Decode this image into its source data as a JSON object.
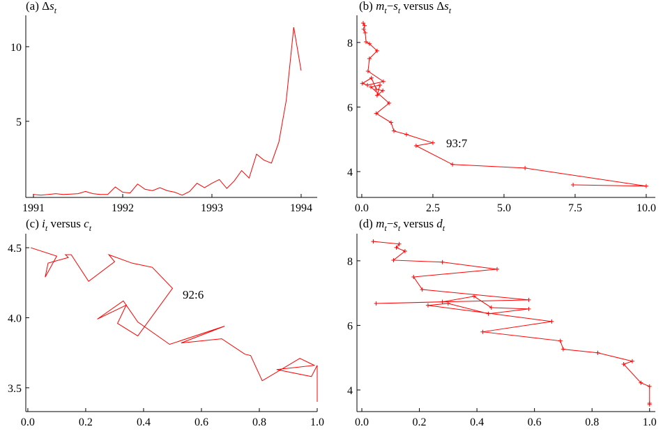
{
  "chart_data": [
    {
      "type": "line",
      "title": [
        "(a) Δ",
        "s",
        "t"
      ],
      "title_style": [
        "normal",
        "italic",
        "sub"
      ],
      "x": [
        1991,
        1991.083,
        1991.167,
        1991.25,
        1991.333,
        1991.417,
        1991.5,
        1991.583,
        1991.667,
        1991.75,
        1991.833,
        1991.917,
        1992,
        1992.083,
        1992.167,
        1992.25,
        1992.333,
        1992.417,
        1992.5,
        1992.583,
        1992.667,
        1992.75,
        1992.833,
        1992.917,
        1993,
        1993.083,
        1993.167,
        1993.25,
        1993.333,
        1993.417,
        1993.5,
        1993.583,
        1993.667,
        1993.75,
        1993.833,
        1993.917,
        1994
      ],
      "y": [
        0.1,
        0.05,
        0.1,
        0.15,
        0.1,
        0.12,
        0.15,
        0.3,
        0.15,
        0.1,
        0.1,
        0.6,
        0.25,
        0.2,
        0.8,
        0.45,
        0.35,
        0.55,
        0.35,
        0.25,
        0.05,
        0.3,
        0.85,
        0.55,
        0.85,
        1.1,
        0.5,
        1.0,
        1.7,
        1.2,
        2.8,
        2.4,
        2.2,
        3.6,
        6.4,
        11.3,
        8.4
      ],
      "color": "#ff0000",
      "markers": false,
      "xlim": [
        1990.914,
        1994.18
      ],
      "ylim": [
        -0.1,
        12.1
      ],
      "xticks": [
        1991,
        1992,
        1993,
        1994
      ],
      "yticks": [
        5,
        10
      ]
    },
    {
      "type": "line",
      "title": [
        "(b) ",
        "m",
        "t",
        "−",
        "s",
        "t",
        " versus Δ",
        "s",
        "t"
      ],
      "title_style": [
        "normal",
        "italic",
        "sub",
        "normal",
        "italic",
        "sub",
        "normal",
        "italic",
        "sub"
      ],
      "x": [
        0.05,
        0.1,
        0.07,
        0.12,
        0.15,
        0.27,
        0.54,
        0.27,
        0.22,
        0.76,
        0.2,
        0.02,
        0.34,
        0.51,
        0.74,
        0.54,
        0.64,
        0.32,
        0.96,
        0.51,
        1.03,
        1.13,
        1.57,
        2.5,
        1.91,
        3.19,
        5.74,
        10.0,
        7.43
      ],
      "y": [
        8.6,
        8.52,
        8.41,
        8.3,
        8.02,
        7.96,
        7.74,
        7.5,
        7.11,
        6.79,
        6.68,
        6.73,
        6.9,
        6.55,
        6.51,
        6.36,
        6.68,
        6.62,
        6.12,
        5.8,
        5.52,
        5.26,
        5.15,
        4.89,
        4.8,
        4.22,
        4.11,
        3.55,
        3.59
      ],
      "color": "#ff0000",
      "markers": true,
      "annotation": "93:7",
      "xlim": [
        -0.17,
        10.32
      ],
      "ylim": [
        3.2,
        8.84
      ],
      "xticks": [
        {
          "value": 0,
          "label": "0.0"
        },
        2.5,
        {
          "value": 5,
          "label": "5.0"
        },
        7.5,
        {
          "value": 10,
          "label": "10.0"
        }
      ],
      "yticks": [
        4,
        6,
        8
      ]
    },
    {
      "type": "line",
      "title": [
        "(c) ",
        "i",
        "t",
        " versus ",
        "c",
        "t"
      ],
      "title_style": [
        "normal",
        "italic",
        "sub",
        "normal",
        "italic",
        "sub"
      ],
      "x": [
        0.01,
        0.1,
        0.06,
        0.07,
        0.14,
        0.13,
        0.15,
        0.21,
        0.3,
        0.28,
        0.36,
        0.43,
        0.5,
        0.38,
        0.31,
        0.34,
        0.25,
        0.24,
        0.33,
        0.38,
        0.49,
        0.68,
        0.53,
        0.67,
        0.75,
        0.77,
        0.81,
        0.94,
        0.99,
        0.86,
        0.98,
        1.0,
        1.0
      ],
      "y": [
        4.5,
        4.44,
        4.29,
        4.39,
        4.43,
        4.45,
        4.45,
        4.26,
        4.4,
        4.45,
        4.39,
        4.36,
        4.21,
        3.87,
        3.96,
        4.09,
        4.0,
        3.99,
        4.12,
        3.97,
        3.81,
        3.94,
        3.82,
        3.85,
        3.74,
        3.73,
        3.55,
        3.71,
        3.66,
        3.63,
        3.58,
        3.66,
        3.4
      ],
      "color": "#ff0000",
      "markers": false,
      "annotation": "92:6",
      "xlim": [
        -0.007,
        1.0
      ],
      "ylim": [
        3.33,
        4.6
      ],
      "xticks": [
        {
          "value": 0,
          "label": "0.0"
        },
        0.2,
        0.4,
        0.6,
        0.8,
        {
          "value": 1,
          "label": "1.0"
        }
      ],
      "yticks": [
        3.5,
        {
          "value": 4,
          "label": "4.0"
        },
        4.5
      ]
    },
    {
      "type": "line",
      "title": [
        "(d) ",
        "m",
        "t",
        "−",
        "s",
        "t",
        " versus ",
        "d",
        "t"
      ],
      "title_style": [
        "normal",
        "italic",
        "sub",
        "normal",
        "italic",
        "sub",
        "normal",
        "italic",
        "sub"
      ],
      "x": [
        0.04,
        0.13,
        0.12,
        0.15,
        0.11,
        0.28,
        0.47,
        0.18,
        0.21,
        0.58,
        0.05,
        0.28,
        0.39,
        0.45,
        0.58,
        0.44,
        0.3,
        0.23,
        0.66,
        0.42,
        0.69,
        0.7,
        0.82,
        0.94,
        0.91,
        0.97,
        1.0,
        1.0,
        1.0
      ],
      "y": [
        8.6,
        8.52,
        8.41,
        8.3,
        8.02,
        7.96,
        7.74,
        7.5,
        7.11,
        6.79,
        6.68,
        6.73,
        6.9,
        6.55,
        6.51,
        6.36,
        6.68,
        6.62,
        6.12,
        5.8,
        5.52,
        5.26,
        5.15,
        4.89,
        4.8,
        4.22,
        4.11,
        3.55,
        3.59
      ],
      "color": "#ff0000",
      "markers": true,
      "xlim": [
        -0.017,
        1.02
      ],
      "ylim": [
        3.33,
        8.84
      ],
      "xticks": [
        {
          "value": 0,
          "label": "0.0"
        },
        0.2,
        0.4,
        0.6,
        0.8,
        {
          "value": 1,
          "label": "1.0"
        }
      ],
      "yticks": [
        4,
        6,
        8
      ]
    }
  ]
}
